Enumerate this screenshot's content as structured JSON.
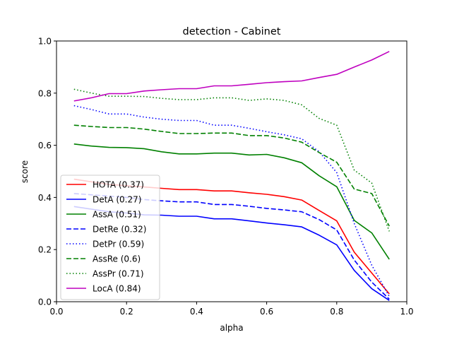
{
  "chart_data": {
    "type": "line",
    "title": "detection - Cabinet",
    "xlabel": "alpha",
    "ylabel": "score",
    "xlim": [
      0.0,
      1.0
    ],
    "ylim": [
      0.0,
      1.0
    ],
    "xticks": [
      "0.0",
      "0.2",
      "0.4",
      "0.6",
      "0.8",
      "1.0"
    ],
    "yticks": [
      "0.0",
      "0.2",
      "0.4",
      "0.6",
      "0.8",
      "1.0"
    ],
    "grid": false,
    "legend_position": "lower-left",
    "x": [
      0.05,
      0.1,
      0.15,
      0.2,
      0.25,
      0.3,
      0.35,
      0.4,
      0.45,
      0.5,
      0.55,
      0.6,
      0.65,
      0.7,
      0.75,
      0.8,
      0.85,
      0.9,
      0.95
    ],
    "series": [
      {
        "name": "HOTA (0.37)",
        "color": "#ff0000",
        "dash": "solid",
        "values": [
          0.47,
          0.46,
          0.45,
          0.445,
          0.44,
          0.435,
          0.43,
          0.43,
          0.425,
          0.425,
          0.418,
          0.412,
          0.403,
          0.39,
          0.35,
          0.31,
          0.19,
          0.11,
          0.03
        ]
      },
      {
        "name": "DetA (0.27)",
        "color": "#0000ff",
        "dash": "solid",
        "values": [
          0.365,
          0.355,
          0.345,
          0.34,
          0.333,
          0.332,
          0.328,
          0.328,
          0.318,
          0.318,
          0.31,
          0.302,
          0.295,
          0.287,
          0.255,
          0.218,
          0.12,
          0.05,
          0.005
        ]
      },
      {
        "name": "AssA (0.51)",
        "color": "#008000",
        "dash": "solid",
        "values": [
          0.605,
          0.597,
          0.592,
          0.591,
          0.587,
          0.575,
          0.567,
          0.567,
          0.57,
          0.57,
          0.563,
          0.565,
          0.552,
          0.533,
          0.483,
          0.441,
          0.312,
          0.264,
          0.163
        ]
      },
      {
        "name": "DetRe (0.32)",
        "color": "#0000ff",
        "dash": "dashed",
        "values": [
          0.415,
          0.41,
          0.405,
          0.4,
          0.392,
          0.387,
          0.383,
          0.383,
          0.373,
          0.373,
          0.366,
          0.358,
          0.352,
          0.345,
          0.315,
          0.275,
          0.16,
          0.075,
          0.01
        ]
      },
      {
        "name": "DetPr (0.59)",
        "color": "#0000ff",
        "dash": "dotted",
        "values": [
          0.752,
          0.737,
          0.72,
          0.72,
          0.708,
          0.7,
          0.695,
          0.695,
          0.677,
          0.677,
          0.665,
          0.652,
          0.64,
          0.625,
          0.575,
          0.495,
          0.3,
          0.14,
          0.02
        ]
      },
      {
        "name": "AssRe (0.6)",
        "color": "#008000",
        "dash": "dashed",
        "values": [
          0.677,
          0.672,
          0.668,
          0.668,
          0.662,
          0.653,
          0.645,
          0.645,
          0.647,
          0.647,
          0.637,
          0.637,
          0.628,
          0.612,
          0.572,
          0.535,
          0.432,
          0.415,
          0.29
        ]
      },
      {
        "name": "AssPr (0.71)",
        "color": "#008000",
        "dash": "dotted",
        "values": [
          0.815,
          0.8,
          0.788,
          0.788,
          0.787,
          0.78,
          0.775,
          0.775,
          0.782,
          0.782,
          0.772,
          0.778,
          0.772,
          0.755,
          0.703,
          0.677,
          0.505,
          0.455,
          0.27
        ]
      },
      {
        "name": "LocA (0.84)",
        "color": "#bf00bf",
        "dash": "solid",
        "values": [
          0.77,
          0.782,
          0.798,
          0.798,
          0.808,
          0.813,
          0.817,
          0.817,
          0.828,
          0.828,
          0.834,
          0.84,
          0.844,
          0.847,
          0.86,
          0.872,
          0.9,
          0.927,
          0.96
        ]
      }
    ]
  }
}
